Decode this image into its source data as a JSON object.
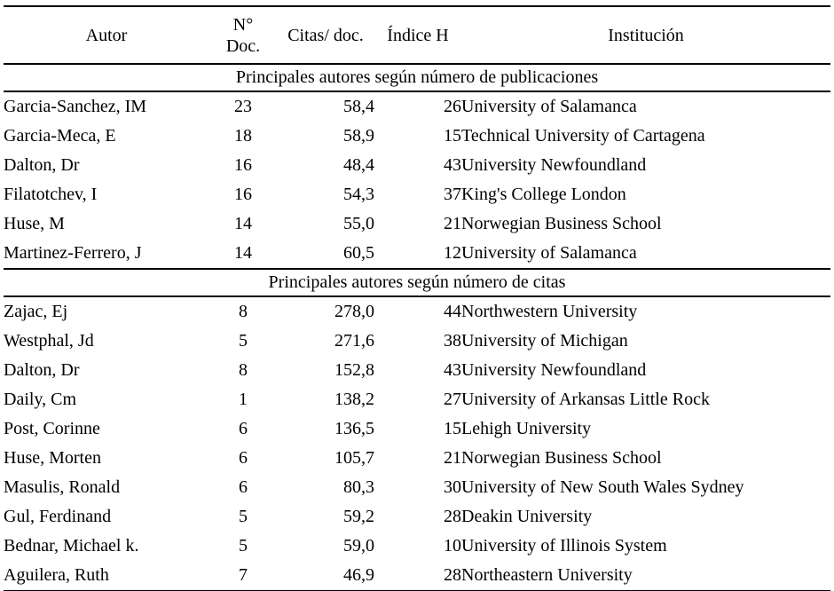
{
  "colors": {
    "text": "#000000",
    "background": "#ffffff",
    "border": "#000000"
  },
  "table": {
    "headers": {
      "autor": "Autor",
      "n_doc_line1": "N°",
      "n_doc_line2": "Doc.",
      "citas_doc": "Citas/ doc.",
      "indice_h": "Índice H",
      "institucion": "Institución"
    },
    "sections": [
      {
        "title": "Principales autores según número de publicaciones",
        "rows": [
          {
            "autor": "Garcia-Sanchez, IM",
            "n_doc": "23",
            "citas_doc": "58,4",
            "indice_h": "26",
            "institucion": "University of Salamanca"
          },
          {
            "autor": "Garcia-Meca, E",
            "n_doc": "18",
            "citas_doc": "58,9",
            "indice_h": "15",
            "institucion": "Technical University of Cartagena"
          },
          {
            "autor": "Dalton, Dr",
            "n_doc": "16",
            "citas_doc": "48,4",
            "indice_h": "43",
            "institucion": "University Newfoundland"
          },
          {
            "autor": "Filatotchev, I",
            "n_doc": "16",
            "citas_doc": "54,3",
            "indice_h": "37",
            "institucion": "King's College London"
          },
          {
            "autor": "Huse, M",
            "n_doc": "14",
            "citas_doc": "55,0",
            "indice_h": "21",
            "institucion": "Norwegian Business School"
          },
          {
            "autor": "Martinez-Ferrero, J",
            "n_doc": "14",
            "citas_doc": "60,5",
            "indice_h": "12",
            "institucion": "University of Salamanca"
          }
        ]
      },
      {
        "title": "Principales autores según número de citas",
        "rows": [
          {
            "autor": "Zajac, Ej",
            "n_doc": "8",
            "citas_doc": "278,0",
            "indice_h": "44",
            "institucion": "Northwestern University"
          },
          {
            "autor": "Westphal, Jd",
            "n_doc": "5",
            "citas_doc": "271,6",
            "indice_h": "38",
            "institucion": "University of Michigan"
          },
          {
            "autor": "Dalton, Dr",
            "n_doc": "8",
            "citas_doc": "152,8",
            "indice_h": "43",
            "institucion": "University Newfoundland"
          },
          {
            "autor": "Daily, Cm",
            "n_doc": "1",
            "citas_doc": "138,2",
            "indice_h": "27",
            "institucion": "University of Arkansas Little Rock"
          },
          {
            "autor": "Post, Corinne",
            "n_doc": "6",
            "citas_doc": "136,5",
            "indice_h": "15",
            "institucion": "Lehigh University"
          },
          {
            "autor": "Huse, Morten",
            "n_doc": "6",
            "citas_doc": "105,7",
            "indice_h": "21",
            "institucion": "Norwegian Business School"
          },
          {
            "autor": "Masulis, Ronald",
            "n_doc": "6",
            "citas_doc": "80,3",
            "indice_h": "30",
            "institucion": "University of New South Wales Sydney"
          },
          {
            "autor": "Gul, Ferdinand",
            "n_doc": "5",
            "citas_doc": "59,2",
            "indice_h": "28",
            "institucion": "Deakin University"
          },
          {
            "autor": "Bednar, Michael k.",
            "n_doc": "5",
            "citas_doc": "59,0",
            "indice_h": "10",
            "institucion": "University of Illinois System"
          },
          {
            "autor": "Aguilera, Ruth",
            "n_doc": "7",
            "citas_doc": "46,9",
            "indice_h": "28",
            "institucion": "Northeastern University"
          }
        ]
      }
    ]
  }
}
